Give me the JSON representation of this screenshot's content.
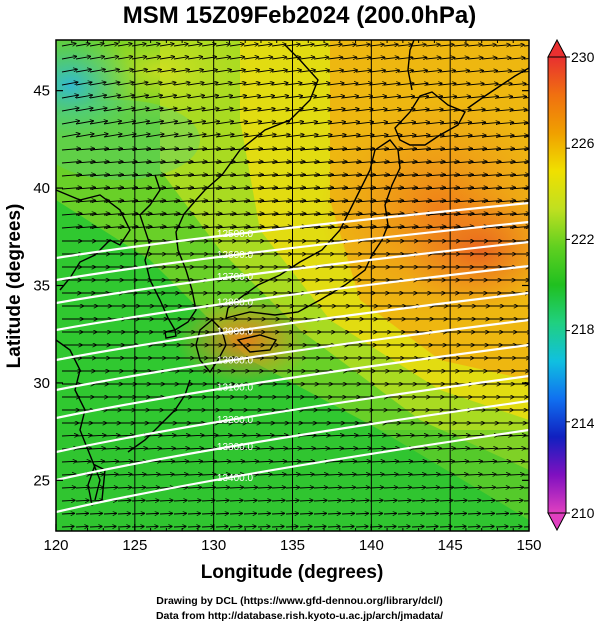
{
  "title": "MSM 15Z09Feb2024 (200.0hPa)",
  "map": {
    "xlabel": "Longitude (degrees)",
    "ylabel": "Latitude  (degrees)",
    "x_ticks": [
      "120",
      "125",
      "130",
      "135",
      "140",
      "145",
      "150"
    ],
    "y_ticks": [
      "25",
      "30",
      "35",
      "40",
      "45"
    ],
    "lon_range": [
      120,
      150
    ],
    "lat_range": [
      22.4,
      47.6
    ],
    "grid_lons": [
      125,
      130,
      135,
      140,
      145
    ],
    "contour_labels": [
      "12500.0",
      "12600.0",
      "12700.0",
      "12800.0",
      "12900.0",
      "13000.0",
      "13100.0",
      "13200.0",
      "13300.0",
      "13400.0"
    ]
  },
  "colorbar": {
    "labels": [
      "230",
      "226",
      "222",
      "218",
      "214",
      "210"
    ],
    "range": [
      210,
      230
    ],
    "colors": [
      "#e040c0",
      "#8010c0",
      "#1020c0",
      "#1070f0",
      "#10c0e0",
      "#20d080",
      "#20c020",
      "#60d020",
      "#c0e020",
      "#f0e000",
      "#f0a000",
      "#f07010",
      "#e83030"
    ]
  },
  "credits": {
    "line1": "Drawing by DCL (https://www.gfd-dennou.org/library/dcl/)",
    "line2": "Data from http://database.rish.kyoto-u.ac.jp/arch/jmadata/"
  }
}
